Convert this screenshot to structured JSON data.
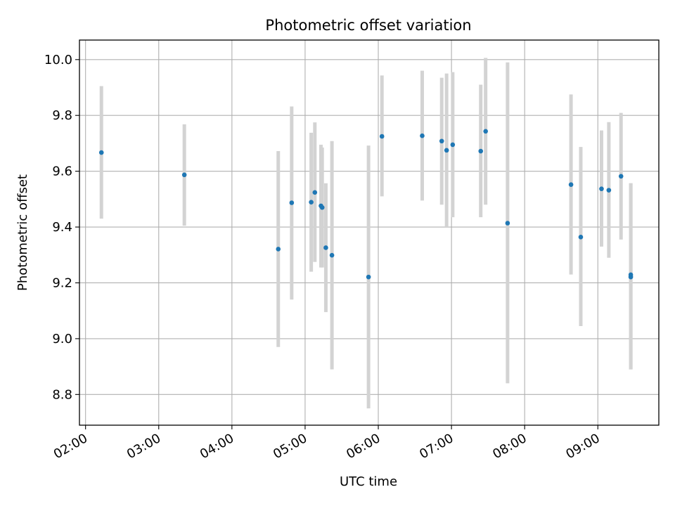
{
  "chart_data": {
    "type": "scatter",
    "title": "Photometric offset variation",
    "xlabel": "UTC time",
    "ylabel": "Photometric offset",
    "x_unit": "UTC time (HH:MM)",
    "xlim": [
      "01:55",
      "09:50"
    ],
    "ylim": [
      8.69,
      10.07
    ],
    "x_ticks": [
      "02:00",
      "03:00",
      "04:00",
      "05:00",
      "06:00",
      "07:00",
      "08:00",
      "09:00"
    ],
    "y_ticks": [
      8.8,
      9.0,
      9.2,
      9.4,
      9.6,
      9.8,
      10.0
    ],
    "grid": true,
    "error_bar_color": "#d3d3d3",
    "marker_color": "#1f77b4",
    "series": [
      {
        "points": [
          {
            "x": "02:13",
            "y": 9.667,
            "yerr_low": 9.43,
            "yerr_high": 9.905
          },
          {
            "x": "03:21",
            "y": 9.587,
            "yerr_low": 9.405,
            "yerr_high": 9.768
          },
          {
            "x": "04:38",
            "y": 9.321,
            "yerr_low": 8.97,
            "yerr_high": 9.672
          },
          {
            "x": "04:49",
            "y": 9.487,
            "yerr_low": 9.14,
            "yerr_high": 9.832
          },
          {
            "x": "05:05",
            "y": 9.489,
            "yerr_low": 9.24,
            "yerr_high": 9.738
          },
          {
            "x": "05:08",
            "y": 9.524,
            "yerr_low": 9.275,
            "yerr_high": 9.775
          },
          {
            "x": "05:13",
            "y": 9.476,
            "yerr_low": 9.255,
            "yerr_high": 9.695
          },
          {
            "x": "05:14",
            "y": 9.47,
            "yerr_low": 9.255,
            "yerr_high": 9.685
          },
          {
            "x": "05:17",
            "y": 9.326,
            "yerr_low": 9.095,
            "yerr_high": 9.557
          },
          {
            "x": "05:22",
            "y": 9.299,
            "yerr_low": 8.89,
            "yerr_high": 9.708
          },
          {
            "x": "05:52",
            "y": 9.221,
            "yerr_low": 8.75,
            "yerr_high": 9.692
          },
          {
            "x": "06:03",
            "y": 9.725,
            "yerr_low": 9.51,
            "yerr_high": 9.943
          },
          {
            "x": "06:36",
            "y": 9.727,
            "yerr_low": 9.495,
            "yerr_high": 9.96
          },
          {
            "x": "06:52",
            "y": 9.708,
            "yerr_low": 9.48,
            "yerr_high": 9.935
          },
          {
            "x": "06:56",
            "y": 9.675,
            "yerr_low": 9.4,
            "yerr_high": 9.95
          },
          {
            "x": "07:01",
            "y": 9.695,
            "yerr_low": 9.435,
            "yerr_high": 9.955
          },
          {
            "x": "07:24",
            "y": 9.672,
            "yerr_low": 9.435,
            "yerr_high": 9.91
          },
          {
            "x": "07:28",
            "y": 9.743,
            "yerr_low": 9.48,
            "yerr_high": 10.006
          },
          {
            "x": "07:46",
            "y": 9.414,
            "yerr_low": 8.84,
            "yerr_high": 9.99
          },
          {
            "x": "08:38",
            "y": 9.552,
            "yerr_low": 9.23,
            "yerr_high": 9.875
          },
          {
            "x": "08:46",
            "y": 9.364,
            "yerr_low": 9.045,
            "yerr_high": 9.687
          },
          {
            "x": "09:03",
            "y": 9.537,
            "yerr_low": 9.33,
            "yerr_high": 9.746
          },
          {
            "x": "09:09",
            "y": 9.532,
            "yerr_low": 9.29,
            "yerr_high": 9.776
          },
          {
            "x": "09:19",
            "y": 9.582,
            "yerr_low": 9.355,
            "yerr_high": 9.809
          },
          {
            "x": "09:27",
            "y": 9.229,
            "yerr_low": 8.89,
            "yerr_high": 9.557
          },
          {
            "x": "09:27",
            "y": 9.221,
            "yerr_low": 8.89,
            "yerr_high": 9.557
          }
        ]
      }
    ]
  }
}
